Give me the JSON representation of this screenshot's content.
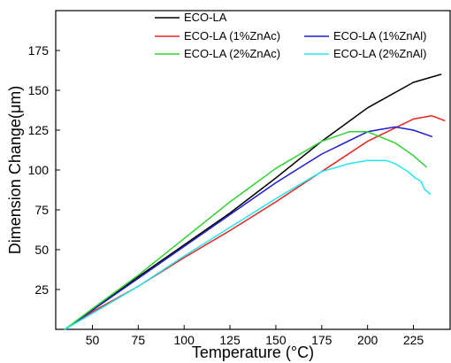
{
  "chart_data": {
    "type": "line",
    "title": "",
    "xlabel": "Temperature (°C)",
    "ylabel": "Dimension Change(μm)",
    "xlim": [
      30,
      245
    ],
    "ylim": [
      0,
      200
    ],
    "x_ticks": [
      50,
      75,
      100,
      125,
      150,
      175,
      200,
      225
    ],
    "x_tick_labels": [
      "50",
      "75",
      "100",
      "125",
      "150",
      "175",
      "200",
      "225"
    ],
    "y_ticks": [
      25,
      50,
      75,
      100,
      125,
      150,
      175
    ],
    "y_tick_labels": [
      "25",
      "50",
      "75",
      "100",
      "125",
      "150",
      "175"
    ],
    "grid": false,
    "legend_placement": "top",
    "series": [
      {
        "name": "ECO-LA",
        "color": "#000000",
        "points": [
          [
            35,
            0
          ],
          [
            50,
            12
          ],
          [
            75,
            33
          ],
          [
            100,
            53
          ],
          [
            125,
            73
          ],
          [
            150,
            95
          ],
          [
            175,
            118
          ],
          [
            200,
            139
          ],
          [
            225,
            155
          ],
          [
            240,
            160
          ]
        ]
      },
      {
        "name": "ECO-LA (1%ZnAc)",
        "color": "#e8231f",
        "points": [
          [
            35,
            0
          ],
          [
            50,
            11
          ],
          [
            75,
            27
          ],
          [
            100,
            45
          ],
          [
            125,
            62
          ],
          [
            150,
            80
          ],
          [
            175,
            99
          ],
          [
            200,
            118
          ],
          [
            225,
            132
          ],
          [
            235,
            134
          ],
          [
            242,
            131
          ]
        ]
      },
      {
        "name": "ECO-LA (1%ZnAl)",
        "color": "#1c1cd0",
        "points": [
          [
            35,
            0
          ],
          [
            50,
            12
          ],
          [
            75,
            32
          ],
          [
            100,
            52
          ],
          [
            125,
            72
          ],
          [
            150,
            92
          ],
          [
            175,
            110
          ],
          [
            200,
            124
          ],
          [
            215,
            127
          ],
          [
            225,
            125
          ],
          [
            235,
            121
          ]
        ]
      },
      {
        "name": "ECO-LA (2%ZnAc)",
        "color": "#2fd22f",
        "points": [
          [
            35,
            0
          ],
          [
            50,
            13
          ],
          [
            75,
            34
          ],
          [
            100,
            57
          ],
          [
            125,
            80
          ],
          [
            150,
            101
          ],
          [
            175,
            118
          ],
          [
            190,
            124
          ],
          [
            200,
            124
          ],
          [
            215,
            117
          ],
          [
            225,
            109
          ],
          [
            232,
            102
          ]
        ]
      },
      {
        "name": "ECO-LA (2%ZnAl)",
        "color": "#22e6f0",
        "points": [
          [
            35,
            0
          ],
          [
            50,
            10
          ],
          [
            75,
            27
          ],
          [
            100,
            46
          ],
          [
            125,
            64
          ],
          [
            150,
            82
          ],
          [
            175,
            99
          ],
          [
            190,
            104
          ],
          [
            200,
            106
          ],
          [
            210,
            106
          ],
          [
            215,
            104
          ],
          [
            222,
            99
          ],
          [
            226,
            95
          ],
          [
            229,
            93
          ],
          [
            231,
            88
          ],
          [
            234,
            85
          ]
        ]
      }
    ]
  }
}
